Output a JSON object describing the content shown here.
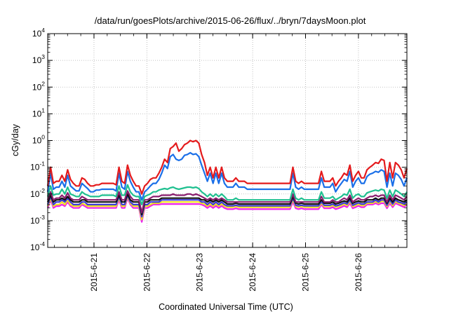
{
  "chart_data": {
    "type": "line",
    "title": "/data/run/goesPlots/archive/2015-06-26/flux/../bryn/7daysMoon.plot",
    "xlabel": "Coordinated Universal Time (UTC)",
    "ylabel": "cGy/day",
    "yscale": "log",
    "ylim": [
      0.0001,
      10000
    ],
    "y_ticks": [
      {
        "base": "10",
        "exp": "-4"
      },
      {
        "base": "10",
        "exp": "-3"
      },
      {
        "base": "10",
        "exp": "-2"
      },
      {
        "base": "10",
        "exp": "-1"
      },
      {
        "base": "10",
        "exp": "0"
      },
      {
        "base": "10",
        "exp": "1"
      },
      {
        "base": "10",
        "exp": "2"
      },
      {
        "base": "10",
        "exp": "3"
      },
      {
        "base": "10",
        "exp": "4"
      }
    ],
    "xlim": [
      "2015-06-20 03:00",
      "2015-06-26 22:00"
    ],
    "x_ticks": [
      "2015-6-21",
      "2015-6-22",
      "2015-6-23",
      "2015-6-24",
      "2015-6-25",
      "2015-6-26"
    ],
    "grid": true,
    "series": [
      {
        "color": "#e41a1c",
        "values": [
          0.02,
          0.1,
          0.025,
          0.03,
          0.03,
          0.05,
          0.03,
          0.08,
          0.035,
          0.025,
          0.02,
          0.02,
          0.04,
          0.035,
          0.025,
          0.02,
          0.02,
          0.022,
          0.022,
          0.025,
          0.025,
          0.025,
          0.025,
          0.025,
          0.022,
          0.1,
          0.03,
          0.025,
          0.12,
          0.05,
          0.03,
          0.02,
          0.02,
          0.01,
          0.02,
          0.025,
          0.035,
          0.04,
          0.04,
          0.06,
          0.1,
          0.2,
          0.15,
          0.5,
          0.6,
          0.8,
          0.4,
          0.5,
          0.7,
          0.8,
          1.0,
          0.9,
          1.0,
          0.8,
          0.3,
          0.15,
          0.05,
          0.1,
          0.04,
          0.1,
          0.04,
          0.1,
          0.04,
          0.03,
          0.03,
          0.03,
          0.04,
          0.03,
          0.03,
          0.03,
          0.025,
          0.025,
          0.025,
          0.025,
          0.025,
          0.025,
          0.025,
          0.025,
          0.025,
          0.025,
          0.025,
          0.025,
          0.025,
          0.025,
          0.025,
          0.025,
          0.1,
          0.03,
          0.025,
          0.03,
          0.025,
          0.025,
          0.025,
          0.025,
          0.025,
          0.025,
          0.07,
          0.03,
          0.03,
          0.03,
          0.04,
          0.02,
          0.03,
          0.04,
          0.06,
          0.05,
          0.12,
          0.03,
          0.05,
          0.07,
          0.04,
          0.04,
          0.08,
          0.1,
          0.12,
          0.15,
          0.14,
          0.2,
          0.18,
          0.03,
          0.15,
          0.04,
          0.15,
          0.12,
          0.08,
          0.04,
          0.09
        ]
      },
      {
        "color": "#1a6fe8",
        "values": [
          0.012,
          0.06,
          0.015,
          0.018,
          0.018,
          0.03,
          0.018,
          0.05,
          0.02,
          0.016,
          0.013,
          0.013,
          0.025,
          0.02,
          0.016,
          0.012,
          0.012,
          0.014,
          0.014,
          0.015,
          0.015,
          0.015,
          0.015,
          0.015,
          0.013,
          0.06,
          0.018,
          0.015,
          0.07,
          0.03,
          0.018,
          0.012,
          0.012,
          0.006,
          0.012,
          0.015,
          0.02,
          0.025,
          0.025,
          0.035,
          0.06,
          0.12,
          0.09,
          0.25,
          0.3,
          0.2,
          0.18,
          0.2,
          0.28,
          0.3,
          0.35,
          0.3,
          0.32,
          0.25,
          0.12,
          0.06,
          0.03,
          0.06,
          0.025,
          0.06,
          0.025,
          0.06,
          0.025,
          0.018,
          0.018,
          0.018,
          0.025,
          0.018,
          0.018,
          0.018,
          0.015,
          0.015,
          0.015,
          0.015,
          0.015,
          0.015,
          0.015,
          0.015,
          0.015,
          0.015,
          0.015,
          0.015,
          0.015,
          0.015,
          0.015,
          0.015,
          0.06,
          0.018,
          0.015,
          0.018,
          0.015,
          0.015,
          0.015,
          0.015,
          0.015,
          0.015,
          0.04,
          0.018,
          0.018,
          0.018,
          0.025,
          0.012,
          0.018,
          0.025,
          0.035,
          0.03,
          0.07,
          0.018,
          0.03,
          0.04,
          0.025,
          0.025,
          0.045,
          0.055,
          0.06,
          0.07,
          0.065,
          0.08,
          0.07,
          0.018,
          0.06,
          0.02,
          0.06,
          0.05,
          0.035,
          0.02,
          0.04
        ]
      },
      {
        "color": "#20c090",
        "values": [
          0.008,
          0.02,
          0.009,
          0.01,
          0.01,
          0.015,
          0.01,
          0.018,
          0.01,
          0.009,
          0.008,
          0.008,
          0.012,
          0.01,
          0.009,
          0.008,
          0.008,
          0.008,
          0.008,
          0.009,
          0.009,
          0.009,
          0.009,
          0.009,
          0.008,
          0.02,
          0.009,
          0.009,
          0.022,
          0.012,
          0.009,
          0.008,
          0.008,
          0.004,
          0.008,
          0.009,
          0.01,
          0.012,
          0.012,
          0.014,
          0.015,
          0.016,
          0.015,
          0.017,
          0.018,
          0.016,
          0.015,
          0.016,
          0.017,
          0.018,
          0.018,
          0.017,
          0.018,
          0.016,
          0.012,
          0.01,
          0.008,
          0.01,
          0.008,
          0.01,
          0.008,
          0.01,
          0.008,
          0.006,
          0.006,
          0.006,
          0.007,
          0.006,
          0.006,
          0.006,
          0.006,
          0.006,
          0.006,
          0.006,
          0.006,
          0.006,
          0.006,
          0.006,
          0.006,
          0.006,
          0.006,
          0.006,
          0.006,
          0.006,
          0.006,
          0.006,
          0.015,
          0.007,
          0.006,
          0.007,
          0.006,
          0.006,
          0.006,
          0.006,
          0.006,
          0.006,
          0.012,
          0.007,
          0.007,
          0.007,
          0.008,
          0.006,
          0.007,
          0.008,
          0.01,
          0.009,
          0.015,
          0.007,
          0.009,
          0.01,
          0.008,
          0.008,
          0.011,
          0.012,
          0.013,
          0.014,
          0.013,
          0.015,
          0.014,
          0.007,
          0.014,
          0.008,
          0.014,
          0.012,
          0.01,
          0.008,
          0.012
        ]
      },
      {
        "color": "#8a1d6e",
        "values": [
          0.006,
          0.012,
          0.006,
          0.007,
          0.007,
          0.009,
          0.007,
          0.011,
          0.007,
          0.006,
          0.006,
          0.006,
          0.008,
          0.007,
          0.006,
          0.006,
          0.006,
          0.006,
          0.006,
          0.006,
          0.006,
          0.006,
          0.006,
          0.006,
          0.006,
          0.012,
          0.006,
          0.006,
          0.013,
          0.008,
          0.006,
          0.006,
          0.006,
          0.002,
          0.006,
          0.006,
          0.007,
          0.008,
          0.008,
          0.008,
          0.009,
          0.009,
          0.009,
          0.009,
          0.01,
          0.009,
          0.009,
          0.009,
          0.009,
          0.01,
          0.01,
          0.009,
          0.01,
          0.009,
          0.008,
          0.007,
          0.006,
          0.007,
          0.006,
          0.007,
          0.006,
          0.007,
          0.006,
          0.005,
          0.005,
          0.005,
          0.005,
          0.005,
          0.005,
          0.005,
          0.005,
          0.005,
          0.005,
          0.005,
          0.005,
          0.005,
          0.005,
          0.005,
          0.005,
          0.005,
          0.005,
          0.005,
          0.005,
          0.005,
          0.005,
          0.005,
          0.01,
          0.005,
          0.005,
          0.005,
          0.005,
          0.005,
          0.005,
          0.005,
          0.005,
          0.005,
          0.008,
          0.005,
          0.005,
          0.005,
          0.006,
          0.005,
          0.005,
          0.006,
          0.007,
          0.006,
          0.009,
          0.005,
          0.006,
          0.007,
          0.006,
          0.006,
          0.007,
          0.008,
          0.008,
          0.009,
          0.008,
          0.009,
          0.009,
          0.005,
          0.009,
          0.006,
          0.009,
          0.008,
          0.007,
          0.006,
          0.008
        ]
      },
      {
        "color": "#111111",
        "values": [
          0.005,
          0.009,
          0.005,
          0.006,
          0.006,
          0.007,
          0.006,
          0.008,
          0.006,
          0.005,
          0.005,
          0.005,
          0.006,
          0.006,
          0.005,
          0.005,
          0.005,
          0.005,
          0.005,
          0.005,
          0.005,
          0.005,
          0.005,
          0.005,
          0.005,
          0.009,
          0.005,
          0.005,
          0.01,
          0.006,
          0.005,
          0.005,
          0.005,
          0.0017,
          0.005,
          0.005,
          0.006,
          0.006,
          0.006,
          0.006,
          0.007,
          0.007,
          0.007,
          0.007,
          0.007,
          0.007,
          0.007,
          0.007,
          0.007,
          0.007,
          0.007,
          0.007,
          0.007,
          0.007,
          0.006,
          0.006,
          0.005,
          0.006,
          0.005,
          0.006,
          0.005,
          0.006,
          0.005,
          0.0042,
          0.0042,
          0.0042,
          0.0045,
          0.0042,
          0.0042,
          0.0042,
          0.0042,
          0.0042,
          0.0042,
          0.0042,
          0.0042,
          0.0042,
          0.0042,
          0.0042,
          0.0042,
          0.0042,
          0.0042,
          0.0042,
          0.0042,
          0.0042,
          0.0042,
          0.0042,
          0.008,
          0.0045,
          0.0042,
          0.0045,
          0.0042,
          0.0042,
          0.0042,
          0.0042,
          0.0042,
          0.0042,
          0.006,
          0.0045,
          0.0045,
          0.0045,
          0.005,
          0.0042,
          0.0045,
          0.005,
          0.0055,
          0.005,
          0.007,
          0.0045,
          0.005,
          0.0055,
          0.005,
          0.005,
          0.006,
          0.006,
          0.006,
          0.007,
          0.006,
          0.007,
          0.007,
          0.0045,
          0.007,
          0.005,
          0.007,
          0.006,
          0.0055,
          0.005,
          0.006
        ]
      },
      {
        "color": "#3b3bd6",
        "values": [
          0.004,
          0.008,
          0.004,
          0.005,
          0.005,
          0.006,
          0.005,
          0.007,
          0.005,
          0.004,
          0.004,
          0.004,
          0.005,
          0.005,
          0.004,
          0.004,
          0.004,
          0.004,
          0.004,
          0.004,
          0.004,
          0.004,
          0.004,
          0.004,
          0.004,
          0.008,
          0.004,
          0.004,
          0.009,
          0.005,
          0.004,
          0.004,
          0.004,
          0.0014,
          0.004,
          0.004,
          0.005,
          0.005,
          0.005,
          0.005,
          0.006,
          0.006,
          0.006,
          0.006,
          0.006,
          0.006,
          0.006,
          0.006,
          0.006,
          0.006,
          0.006,
          0.006,
          0.006,
          0.006,
          0.005,
          0.005,
          0.004,
          0.005,
          0.004,
          0.005,
          0.004,
          0.005,
          0.004,
          0.0036,
          0.0036,
          0.0036,
          0.0038,
          0.0036,
          0.0036,
          0.0036,
          0.0036,
          0.0036,
          0.0036,
          0.0036,
          0.0036,
          0.0036,
          0.0036,
          0.0036,
          0.0036,
          0.0036,
          0.0036,
          0.0036,
          0.0036,
          0.0036,
          0.0036,
          0.0036,
          0.007,
          0.0038,
          0.0036,
          0.0038,
          0.0036,
          0.0036,
          0.0036,
          0.0036,
          0.0036,
          0.0036,
          0.005,
          0.0038,
          0.0038,
          0.0038,
          0.0042,
          0.0036,
          0.0038,
          0.0042,
          0.0047,
          0.0042,
          0.006,
          0.0038,
          0.0042,
          0.0047,
          0.0042,
          0.0042,
          0.005,
          0.005,
          0.005,
          0.006,
          0.005,
          0.006,
          0.006,
          0.0038,
          0.006,
          0.0042,
          0.006,
          0.005,
          0.0047,
          0.0042,
          0.005
        ]
      },
      {
        "color": "#f0e020",
        "values": [
          0.0035,
          0.007,
          0.0035,
          0.004,
          0.004,
          0.005,
          0.004,
          0.006,
          0.004,
          0.0035,
          0.0035,
          0.0035,
          0.0045,
          0.004,
          0.0035,
          0.0035,
          0.0035,
          0.0035,
          0.0035,
          0.0035,
          0.0035,
          0.0035,
          0.0035,
          0.0035,
          0.0035,
          0.007,
          0.0035,
          0.0035,
          0.008,
          0.0045,
          0.0035,
          0.0035,
          0.0035,
          0.0011,
          0.0035,
          0.0035,
          0.004,
          0.0045,
          0.0045,
          0.0045,
          0.005,
          0.005,
          0.005,
          0.005,
          0.005,
          0.005,
          0.005,
          0.005,
          0.005,
          0.005,
          0.005,
          0.005,
          0.005,
          0.005,
          0.0045,
          0.0042,
          0.0035,
          0.0042,
          0.0035,
          0.0042,
          0.0035,
          0.0042,
          0.0035,
          0.0032,
          0.0032,
          0.0032,
          0.0034,
          0.0032,
          0.0032,
          0.0032,
          0.0032,
          0.0032,
          0.0032,
          0.0032,
          0.0032,
          0.0032,
          0.0032,
          0.0032,
          0.0032,
          0.0032,
          0.0032,
          0.0032,
          0.0032,
          0.0032,
          0.0032,
          0.0032,
          0.006,
          0.0034,
          0.0032,
          0.0034,
          0.0032,
          0.0032,
          0.0032,
          0.0032,
          0.0032,
          0.0032,
          0.0045,
          0.0034,
          0.0034,
          0.0034,
          0.0037,
          0.0032,
          0.0034,
          0.0037,
          0.0042,
          0.0037,
          0.0053,
          0.0034,
          0.0037,
          0.0042,
          0.0037,
          0.0037,
          0.0045,
          0.0045,
          0.0045,
          0.0053,
          0.0045,
          0.0053,
          0.0053,
          0.0034,
          0.0053,
          0.0037,
          0.0053,
          0.0045,
          0.0042,
          0.0037,
          0.0045
        ]
      },
      {
        "color": "#ee22ee",
        "values": [
          0.003,
          0.006,
          0.003,
          0.0035,
          0.0035,
          0.004,
          0.0035,
          0.005,
          0.0035,
          0.003,
          0.003,
          0.003,
          0.004,
          0.0035,
          0.003,
          0.003,
          0.003,
          0.003,
          0.003,
          0.003,
          0.003,
          0.003,
          0.003,
          0.003,
          0.003,
          0.006,
          0.003,
          0.003,
          0.007,
          0.004,
          0.003,
          0.003,
          0.003,
          0.0009,
          0.003,
          0.003,
          0.0035,
          0.004,
          0.004,
          0.004,
          0.0042,
          0.0042,
          0.0042,
          0.0042,
          0.0042,
          0.0042,
          0.0042,
          0.0042,
          0.0042,
          0.0042,
          0.0042,
          0.0042,
          0.0042,
          0.0042,
          0.004,
          0.0036,
          0.003,
          0.0036,
          0.003,
          0.0036,
          0.003,
          0.0036,
          0.003,
          0.0027,
          0.0027,
          0.0027,
          0.0029,
          0.0027,
          0.0027,
          0.0027,
          0.0027,
          0.0027,
          0.0027,
          0.0027,
          0.0027,
          0.0027,
          0.0027,
          0.0027,
          0.0027,
          0.0027,
          0.0027,
          0.0027,
          0.0027,
          0.0027,
          0.0027,
          0.0027,
          0.005,
          0.0029,
          0.0027,
          0.0029,
          0.0027,
          0.0027,
          0.0027,
          0.0027,
          0.0027,
          0.0027,
          0.004,
          0.0029,
          0.0029,
          0.0029,
          0.0032,
          0.0027,
          0.0029,
          0.0032,
          0.0036,
          0.0032,
          0.0045,
          0.0029,
          0.0032,
          0.0036,
          0.0032,
          0.0032,
          0.004,
          0.004,
          0.004,
          0.0045,
          0.004,
          0.0045,
          0.0045,
          0.0029,
          0.0045,
          0.0032,
          0.0045,
          0.004,
          0.0036,
          0.0032,
          0.004
        ]
      }
    ]
  }
}
